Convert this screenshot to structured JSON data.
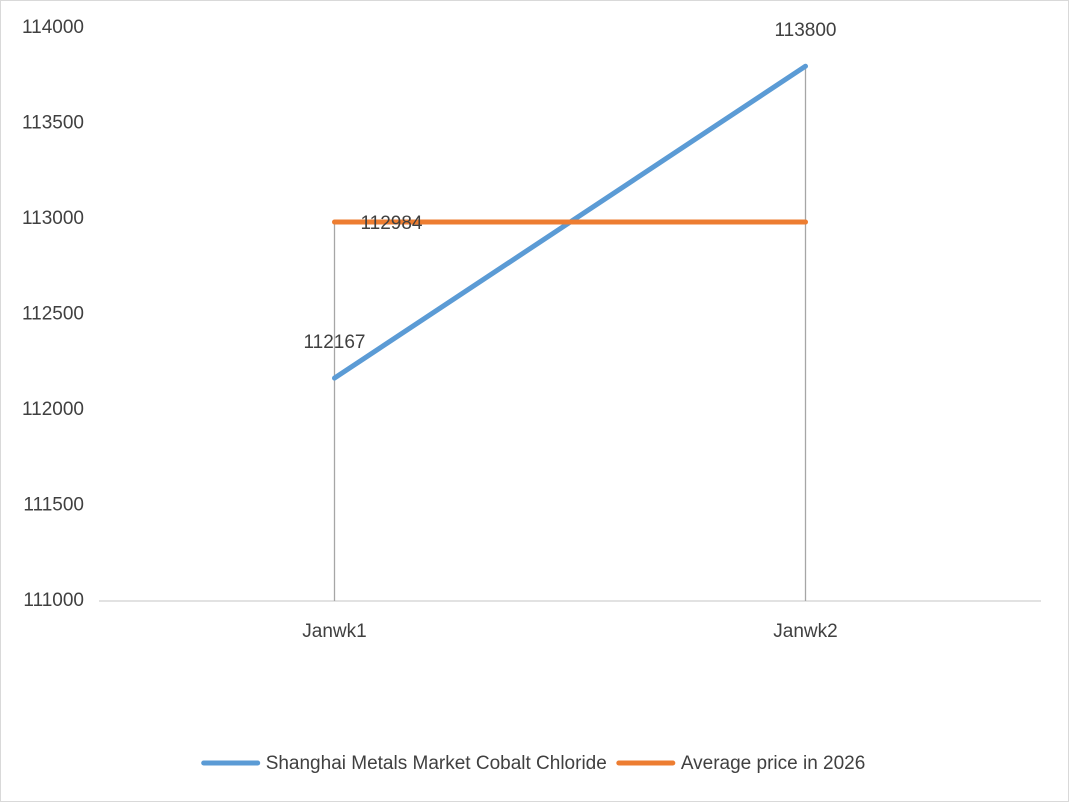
{
  "chart_data": {
    "type": "line",
    "categories": [
      "Janwk1",
      "Janwk2"
    ],
    "series": [
      {
        "name": "Shanghai Metals Market Cobalt Chloride",
        "color": "#5b9bd5",
        "values": [
          112167,
          113800
        ],
        "labeled": [
          0,
          1
        ],
        "label_position": "above"
      },
      {
        "name": "Average price in 2026",
        "color": "#ed7d31",
        "values": [
          112984,
          112984
        ],
        "labeled": [
          0
        ],
        "label_position": "right"
      }
    ],
    "ylim": [
      111000,
      114000
    ],
    "yticks": [
      111000,
      111500,
      112000,
      112500,
      113000,
      113500,
      114000
    ],
    "grid": false,
    "drop_lines": true,
    "legend": "bottom"
  }
}
